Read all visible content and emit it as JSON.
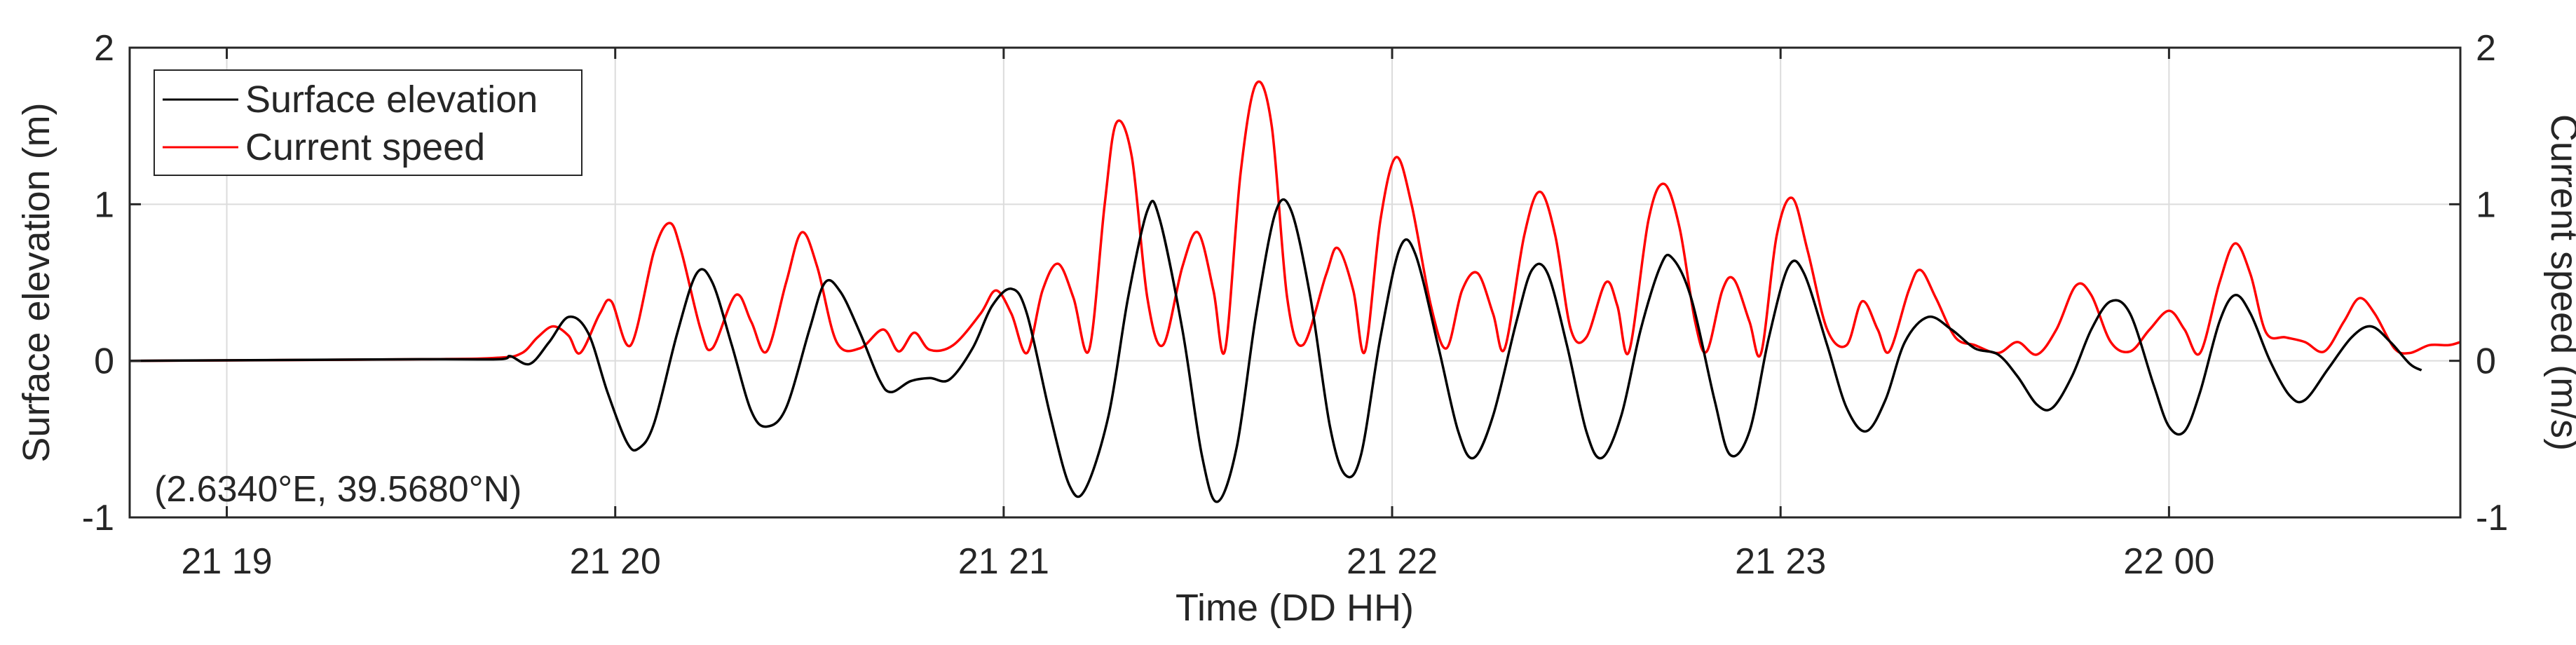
{
  "chart_data": {
    "type": "line",
    "xlabel": "Time (DD HH)",
    "ylabel_left": "Surface elevation (m)",
    "ylabel_right": "Current speed (m/s)",
    "annotation": "(2.6340°E, 39.5680°N)",
    "grid": true,
    "legend_placement": "top-left",
    "x_unit": "hours from 21 19:00",
    "xlim": [
      -0.25,
      5.75
    ],
    "ylim_left": [
      -1,
      2
    ],
    "ylim_right": [
      -1,
      2
    ],
    "x_ticks": [
      {
        "value": 0,
        "label": "21 19"
      },
      {
        "value": 1,
        "label": "21 20"
      },
      {
        "value": 2,
        "label": "21 21"
      },
      {
        "value": 3,
        "label": "21 22"
      },
      {
        "value": 4,
        "label": "21 23"
      },
      {
        "value": 5,
        "label": "22 00"
      }
    ],
    "y_ticks_left": [
      {
        "value": -1,
        "label": "-1"
      },
      {
        "value": 0,
        "label": "0"
      },
      {
        "value": 1,
        "label": "1"
      },
      {
        "value": 2,
        "label": "2"
      }
    ],
    "y_ticks_right": [
      {
        "value": -1,
        "label": "-1"
      },
      {
        "value": 0,
        "label": "0"
      },
      {
        "value": 1,
        "label": "1"
      },
      {
        "value": 2,
        "label": "2"
      }
    ],
    "series": [
      {
        "name": "Surface elevation",
        "color": "#000000",
        "axis": "left",
        "points": [
          [
            -0.25,
            0
          ],
          [
            0.5,
            0.01
          ],
          [
            0.7,
            0.01
          ],
          [
            0.73,
            0.03
          ],
          [
            0.78,
            -0.02
          ],
          [
            0.83,
            0.12
          ],
          [
            0.88,
            0.28
          ],
          [
            0.93,
            0.18
          ],
          [
            0.98,
            -0.2
          ],
          [
            1.03,
            -0.52
          ],
          [
            1.06,
            -0.56
          ],
          [
            1.1,
            -0.4
          ],
          [
            1.16,
            0.18
          ],
          [
            1.21,
            0.56
          ],
          [
            1.25,
            0.5
          ],
          [
            1.3,
            0.1
          ],
          [
            1.35,
            -0.32
          ],
          [
            1.39,
            -0.42
          ],
          [
            1.44,
            -0.3
          ],
          [
            1.5,
            0.2
          ],
          [
            1.54,
            0.5
          ],
          [
            1.58,
            0.44
          ],
          [
            1.63,
            0.18
          ],
          [
            1.68,
            -0.12
          ],
          [
            1.71,
            -0.2
          ],
          [
            1.76,
            -0.13
          ],
          [
            1.81,
            -0.11
          ],
          [
            1.86,
            -0.12
          ],
          [
            1.92,
            0.08
          ],
          [
            1.97,
            0.35
          ],
          [
            2.02,
            0.46
          ],
          [
            2.06,
            0.3
          ],
          [
            2.12,
            -0.35
          ],
          [
            2.17,
            -0.8
          ],
          [
            2.21,
            -0.82
          ],
          [
            2.27,
            -0.35
          ],
          [
            2.32,
            0.4
          ],
          [
            2.37,
            0.96
          ],
          [
            2.4,
            0.92
          ],
          [
            2.46,
            0.2
          ],
          [
            2.51,
            -0.6
          ],
          [
            2.55,
            -0.9
          ],
          [
            2.6,
            -0.55
          ],
          [
            2.65,
            0.3
          ],
          [
            2.7,
            0.95
          ],
          [
            2.74,
            0.96
          ],
          [
            2.79,
            0.4
          ],
          [
            2.84,
            -0.42
          ],
          [
            2.88,
            -0.73
          ],
          [
            2.92,
            -0.6
          ],
          [
            2.97,
            0.15
          ],
          [
            3.02,
            0.72
          ],
          [
            3.06,
            0.68
          ],
          [
            3.12,
            0.08
          ],
          [
            3.17,
            -0.45
          ],
          [
            3.21,
            -0.62
          ],
          [
            3.26,
            -0.35
          ],
          [
            3.32,
            0.25
          ],
          [
            3.36,
            0.58
          ],
          [
            3.4,
            0.56
          ],
          [
            3.45,
            0.1
          ],
          [
            3.5,
            -0.45
          ],
          [
            3.54,
            -0.62
          ],
          [
            3.59,
            -0.35
          ],
          [
            3.64,
            0.2
          ],
          [
            3.69,
            0.6
          ],
          [
            3.72,
            0.66
          ],
          [
            3.77,
            0.4
          ],
          [
            3.83,
            -0.25
          ],
          [
            3.87,
            -0.6
          ],
          [
            3.92,
            -0.45
          ],
          [
            3.97,
            0.15
          ],
          [
            4.02,
            0.6
          ],
          [
            4.06,
            0.56
          ],
          [
            4.12,
            0.1
          ],
          [
            4.17,
            -0.3
          ],
          [
            4.22,
            -0.45
          ],
          [
            4.27,
            -0.25
          ],
          [
            4.32,
            0.12
          ],
          [
            4.38,
            0.28
          ],
          [
            4.44,
            0.2
          ],
          [
            4.5,
            0.08
          ],
          [
            4.56,
            0.04
          ],
          [
            4.61,
            -0.1
          ],
          [
            4.66,
            -0.28
          ],
          [
            4.7,
            -0.3
          ],
          [
            4.75,
            -0.1
          ],
          [
            4.8,
            0.2
          ],
          [
            4.85,
            0.38
          ],
          [
            4.9,
            0.3
          ],
          [
            4.96,
            -0.15
          ],
          [
            5.0,
            -0.42
          ],
          [
            5.04,
            -0.45
          ],
          [
            5.08,
            -0.2
          ],
          [
            5.13,
            0.25
          ],
          [
            5.17,
            0.42
          ],
          [
            5.21,
            0.3
          ],
          [
            5.26,
            0.0
          ],
          [
            5.31,
            -0.22
          ],
          [
            5.35,
            -0.25
          ],
          [
            5.41,
            -0.05
          ],
          [
            5.47,
            0.15
          ],
          [
            5.52,
            0.22
          ],
          [
            5.57,
            0.12
          ],
          [
            5.62,
            -0.02
          ],
          [
            5.65,
            -0.06
          ]
        ]
      },
      {
        "name": "Current speed",
        "color": "#ff0000",
        "axis": "right",
        "points": [
          [
            -0.25,
            0
          ],
          [
            0.5,
            0.01
          ],
          [
            0.7,
            0.02
          ],
          [
            0.76,
            0.05
          ],
          [
            0.8,
            0.15
          ],
          [
            0.84,
            0.22
          ],
          [
            0.88,
            0.16
          ],
          [
            0.91,
            0.05
          ],
          [
            0.96,
            0.3
          ],
          [
            0.99,
            0.38
          ],
          [
            1.04,
            0.1
          ],
          [
            1.1,
            0.7
          ],
          [
            1.14,
            0.88
          ],
          [
            1.17,
            0.7
          ],
          [
            1.22,
            0.2
          ],
          [
            1.25,
            0.08
          ],
          [
            1.31,
            0.42
          ],
          [
            1.35,
            0.25
          ],
          [
            1.39,
            0.06
          ],
          [
            1.44,
            0.5
          ],
          [
            1.48,
            0.82
          ],
          [
            1.52,
            0.6
          ],
          [
            1.57,
            0.12
          ],
          [
            1.63,
            0.08
          ],
          [
            1.69,
            0.2
          ],
          [
            1.73,
            0.06
          ],
          [
            1.77,
            0.18
          ],
          [
            1.81,
            0.07
          ],
          [
            1.87,
            0.1
          ],
          [
            1.94,
            0.3
          ],
          [
            1.98,
            0.45
          ],
          [
            2.02,
            0.3
          ],
          [
            2.06,
            0.05
          ],
          [
            2.1,
            0.45
          ],
          [
            2.14,
            0.62
          ],
          [
            2.18,
            0.4
          ],
          [
            2.22,
            0.07
          ],
          [
            2.26,
            1.0
          ],
          [
            2.29,
            1.52
          ],
          [
            2.33,
            1.3
          ],
          [
            2.37,
            0.4
          ],
          [
            2.41,
            0.1
          ],
          [
            2.46,
            0.6
          ],
          [
            2.5,
            0.82
          ],
          [
            2.54,
            0.45
          ],
          [
            2.57,
            0.07
          ],
          [
            2.61,
            1.2
          ],
          [
            2.65,
            1.77
          ],
          [
            2.69,
            1.5
          ],
          [
            2.73,
            0.4
          ],
          [
            2.77,
            0.1
          ],
          [
            2.83,
            0.55
          ],
          [
            2.86,
            0.72
          ],
          [
            2.9,
            0.45
          ],
          [
            2.93,
            0.06
          ],
          [
            2.97,
            0.9
          ],
          [
            3.01,
            1.3
          ],
          [
            3.05,
            1.0
          ],
          [
            3.1,
            0.35
          ],
          [
            3.14,
            0.08
          ],
          [
            3.18,
            0.45
          ],
          [
            3.22,
            0.56
          ],
          [
            3.26,
            0.3
          ],
          [
            3.29,
            0.08
          ],
          [
            3.34,
            0.8
          ],
          [
            3.38,
            1.08
          ],
          [
            3.42,
            0.8
          ],
          [
            3.46,
            0.2
          ],
          [
            3.5,
            0.15
          ],
          [
            3.55,
            0.5
          ],
          [
            3.58,
            0.35
          ],
          [
            3.61,
            0.06
          ],
          [
            3.66,
            0.9
          ],
          [
            3.7,
            1.13
          ],
          [
            3.74,
            0.85
          ],
          [
            3.78,
            0.25
          ],
          [
            3.81,
            0.06
          ],
          [
            3.85,
            0.45
          ],
          [
            3.88,
            0.52
          ],
          [
            3.92,
            0.25
          ],
          [
            3.95,
            0.05
          ],
          [
            3.99,
            0.8
          ],
          [
            4.03,
            1.04
          ],
          [
            4.07,
            0.7
          ],
          [
            4.12,
            0.2
          ],
          [
            4.17,
            0.1
          ],
          [
            4.21,
            0.38
          ],
          [
            4.25,
            0.2
          ],
          [
            4.28,
            0.06
          ],
          [
            4.33,
            0.45
          ],
          [
            4.36,
            0.58
          ],
          [
            4.4,
            0.4
          ],
          [
            4.45,
            0.15
          ],
          [
            4.5,
            0.1
          ],
          [
            4.56,
            0.05
          ],
          [
            4.61,
            0.12
          ],
          [
            4.66,
            0.04
          ],
          [
            4.71,
            0.2
          ],
          [
            4.76,
            0.48
          ],
          [
            4.8,
            0.42
          ],
          [
            4.85,
            0.12
          ],
          [
            4.9,
            0.06
          ],
          [
            4.95,
            0.2
          ],
          [
            5.0,
            0.32
          ],
          [
            5.04,
            0.2
          ],
          [
            5.08,
            0.05
          ],
          [
            5.13,
            0.5
          ],
          [
            5.17,
            0.75
          ],
          [
            5.21,
            0.55
          ],
          [
            5.25,
            0.18
          ],
          [
            5.3,
            0.15
          ],
          [
            5.35,
            0.12
          ],
          [
            5.4,
            0.06
          ],
          [
            5.45,
            0.25
          ],
          [
            5.49,
            0.4
          ],
          [
            5.53,
            0.3
          ],
          [
            5.58,
            0.08
          ],
          [
            5.62,
            0.05
          ],
          [
            5.67,
            0.1
          ],
          [
            5.72,
            0.1
          ],
          [
            5.75,
            0.12
          ]
        ]
      }
    ]
  }
}
